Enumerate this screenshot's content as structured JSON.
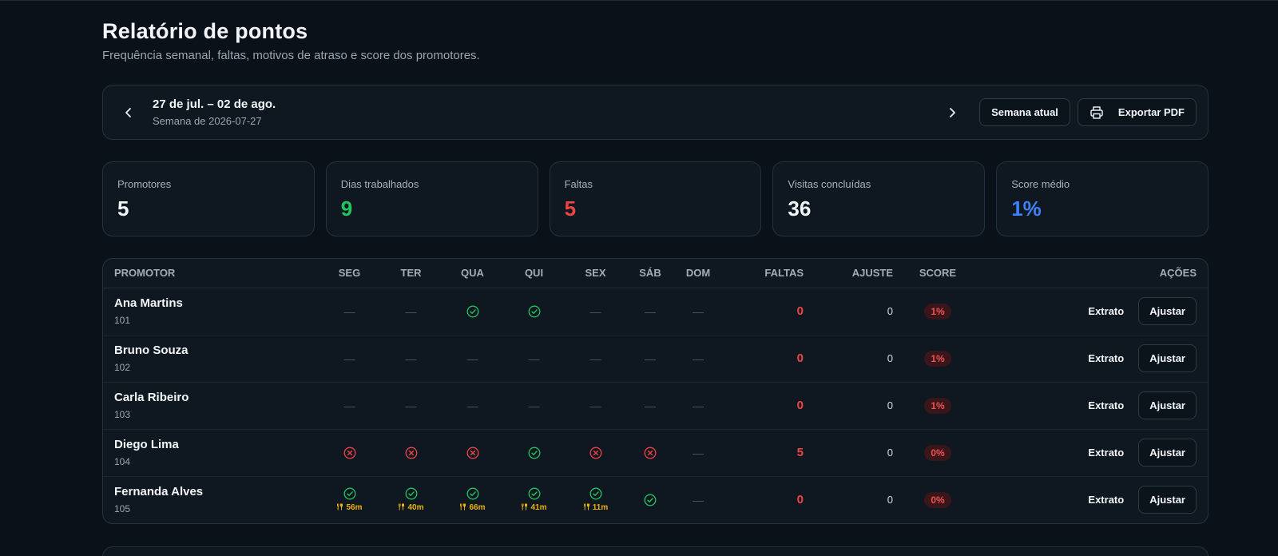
{
  "header": {
    "title": "Relatório de pontos",
    "subtitle": "Frequência semanal, faltas, motivos de atraso e score dos promotores."
  },
  "week": {
    "range": "27 de jul. – 02 de ago.",
    "label": "Semana de 2026-07-27",
    "current_week_label": "Semana atual",
    "export_label": "Exportar PDF"
  },
  "stats": [
    {
      "label": "Promotores",
      "value": "5",
      "color": "#f3f6f9"
    },
    {
      "label": "Dias trabalhados",
      "value": "9",
      "color": "#22c55e"
    },
    {
      "label": "Faltas",
      "value": "5",
      "color": "#ef4444"
    },
    {
      "label": "Visitas concluídas",
      "value": "36",
      "color": "#f3f6f9"
    },
    {
      "label": "Score médio",
      "value": "1%",
      "color": "#3b82f6"
    }
  ],
  "table": {
    "headers": {
      "promotor": "PROMOTOR",
      "days": [
        "SEG",
        "TER",
        "QUA",
        "QUI",
        "SEX",
        "SÁB",
        "DOM"
      ],
      "faltas": "FALTAS",
      "ajuste": "AJUSTE",
      "score": "SCORE",
      "acoes": "AÇÕES"
    },
    "rows": [
      {
        "name": "Ana Martins",
        "code": "101",
        "days": [
          {
            "s": "none"
          },
          {
            "s": "none"
          },
          {
            "s": "ok"
          },
          {
            "s": "ok"
          },
          {
            "s": "none"
          },
          {
            "s": "none"
          },
          {
            "s": "none"
          }
        ],
        "faltas": "0",
        "ajuste": "0",
        "score": "1%"
      },
      {
        "name": "Bruno Souza",
        "code": "102",
        "days": [
          {
            "s": "none"
          },
          {
            "s": "none"
          },
          {
            "s": "none"
          },
          {
            "s": "none"
          },
          {
            "s": "none"
          },
          {
            "s": "none"
          },
          {
            "s": "none"
          }
        ],
        "faltas": "0",
        "ajuste": "0",
        "score": "1%"
      },
      {
        "name": "Carla Ribeiro",
        "code": "103",
        "days": [
          {
            "s": "none"
          },
          {
            "s": "none"
          },
          {
            "s": "none"
          },
          {
            "s": "none"
          },
          {
            "s": "none"
          },
          {
            "s": "none"
          },
          {
            "s": "none"
          }
        ],
        "faltas": "0",
        "ajuste": "0",
        "score": "1%"
      },
      {
        "name": "Diego Lima",
        "code": "104",
        "days": [
          {
            "s": "absent"
          },
          {
            "s": "absent"
          },
          {
            "s": "absent"
          },
          {
            "s": "ok"
          },
          {
            "s": "absent"
          },
          {
            "s": "absent"
          },
          {
            "s": "none"
          }
        ],
        "faltas": "5",
        "ajuste": "0",
        "score": "0%"
      },
      {
        "name": "Fernanda Alves",
        "code": "105",
        "days": [
          {
            "s": "ok",
            "delay": "56m"
          },
          {
            "s": "ok",
            "delay": "40m"
          },
          {
            "s": "ok",
            "delay": "66m"
          },
          {
            "s": "ok",
            "delay": "41m"
          },
          {
            "s": "ok",
            "delay": "11m"
          },
          {
            "s": "ok"
          },
          {
            "s": "none"
          }
        ],
        "faltas": "0",
        "ajuste": "0",
        "score": "0%"
      }
    ],
    "extrato_label": "Extrato",
    "ajustar_label": "Ajustar",
    "none_mark": "—"
  },
  "colors": {
    "ok": "#22c55e",
    "absent": "#ef4444",
    "delay": "#eab308"
  }
}
